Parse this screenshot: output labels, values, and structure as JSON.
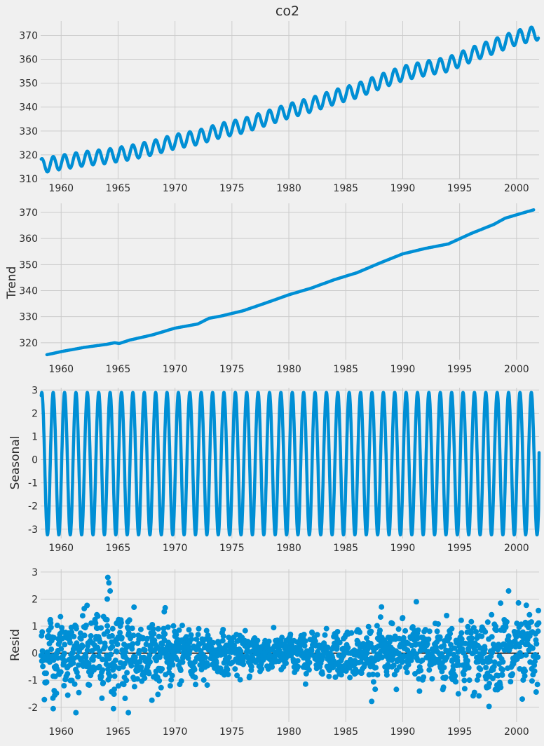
{
  "chart_data": [
    {
      "type": "line",
      "title": "co2",
      "ylabel": "",
      "xlim": [
        1958.2,
        2001.98
      ],
      "ylim": [
        310,
        376
      ],
      "x_ticks": [
        1960,
        1965,
        1970,
        1975,
        1980,
        1985,
        1990,
        1995,
        2000
      ],
      "y_ticks": [
        310,
        320,
        330,
        340,
        350,
        360,
        370
      ],
      "grid": true,
      "color": "#008fd5",
      "series": [
        {
          "x": [
            1958.25,
            1960,
            1962,
            1964,
            1966,
            1968,
            1970,
            1972,
            1974,
            1976,
            1978,
            1980,
            1982,
            1984,
            1986,
            1988,
            1990,
            1992,
            1994,
            1996,
            1998,
            2000,
            2001.9
          ],
          "y": [
            315.4,
            316.9,
            318.4,
            319.4,
            320.9,
            322.9,
            325.6,
            327.3,
            330.2,
            332.2,
            335.3,
            338.4,
            341.0,
            344.2,
            346.9,
            350.6,
            354.1,
            356.2,
            357.9,
            361.9,
            365.4,
            369.1,
            371.1
          ],
          "seasonal_amplitude": 3.0,
          "start": 1958.25,
          "end": 2001.95
        }
      ]
    },
    {
      "type": "line",
      "title": "",
      "ylabel": "Trend",
      "xlim": [
        1958.2,
        2001.98
      ],
      "ylim": [
        313.5,
        373.5
      ],
      "x_ticks": [
        1960,
        1965,
        1970,
        1975,
        1980,
        1985,
        1990,
        1995,
        2000
      ],
      "y_ticks": [
        320,
        330,
        340,
        350,
        360,
        370
      ],
      "grid": true,
      "series": [
        {
          "x": [
            1958.75,
            1960,
            1962,
            1964,
            1964.7,
            1965.1,
            1966,
            1968,
            1970,
            1972,
            1973,
            1974,
            1976,
            1978,
            1980,
            1982,
            1984,
            1986,
            1988,
            1990,
            1992,
            1994,
            1996,
            1998,
            1999,
            2000,
            2001.5
          ],
          "y": [
            315.4,
            316.6,
            318.2,
            319.4,
            320.0,
            319.7,
            321.0,
            323.0,
            325.6,
            327.2,
            329.4,
            330.2,
            332.3,
            335.3,
            338.4,
            341.0,
            344.2,
            346.9,
            350.6,
            354.1,
            356.2,
            357.9,
            361.9,
            365.4,
            367.8,
            369.1,
            371.0
          ]
        }
      ]
    },
    {
      "type": "line",
      "title": "",
      "ylabel": "Seasonal",
      "xlim": [
        1958.2,
        2001.98
      ],
      "ylim": [
        -3.4,
        3.1
      ],
      "x_ticks": [
        1960,
        1965,
        1970,
        1975,
        1980,
        1985,
        1990,
        1995,
        2000
      ],
      "y_ticks": [
        -3,
        -2,
        -1,
        0,
        1,
        2,
        3
      ],
      "grid": true,
      "series": [
        {
          "amplitude_max": 2.9,
          "amplitude_min": -3.25,
          "period_years": 1,
          "start": 1958.25,
          "end": 2001.95,
          "end_value": 0.3
        }
      ]
    },
    {
      "type": "scatter",
      "title": "",
      "ylabel": "Resid",
      "xlim": [
        1958.2,
        2001.98
      ],
      "ylim": [
        -2.55,
        3.1
      ],
      "x_ticks": [
        1960,
        1965,
        1970,
        1975,
        1980,
        1985,
        1990,
        1995,
        2000
      ],
      "y_ticks": [
        -2,
        -1,
        0,
        1,
        2,
        3
      ],
      "grid": true,
      "zero_line": true,
      "series": [
        {
          "start": 1958.25,
          "end": 2001.95,
          "spread": [
            {
              "x": 1958.2,
              "s": 1.15
            },
            {
              "x": 1966,
              "s": 1.35
            },
            {
              "x": 1969,
              "s": 0.95
            },
            {
              "x": 1973,
              "s": 0.65
            },
            {
              "x": 1980,
              "s": 0.6
            },
            {
              "x": 1985,
              "s": 0.75
            },
            {
              "x": 1990,
              "s": 0.9
            },
            {
              "x": 1995,
              "s": 1.1
            },
            {
              "x": 2002,
              "s": 1.25
            }
          ],
          "highlights": [
            {
              "x": 1964.1,
              "y": 2.8
            },
            {
              "x": 1964.2,
              "y": 2.6
            },
            {
              "x": 1964.3,
              "y": 2.3
            },
            {
              "x": 1964.05,
              "y": 2.0
            },
            {
              "x": 1999.3,
              "y": 2.3
            },
            {
              "x": 1998.6,
              "y": 1.85
            },
            {
              "x": 1991.2,
              "y": 1.9
            },
            {
              "x": 1965.9,
              "y": -2.2
            },
            {
              "x": 1964.6,
              "y": -2.05
            },
            {
              "x": 1961.3,
              "y": -2.2
            },
            {
              "x": 1959.3,
              "y": -2.05
            },
            {
              "x": 1966.4,
              "y": 1.7
            },
            {
              "x": 1996.3,
              "y": -1.45
            }
          ]
        }
      ]
    }
  ]
}
